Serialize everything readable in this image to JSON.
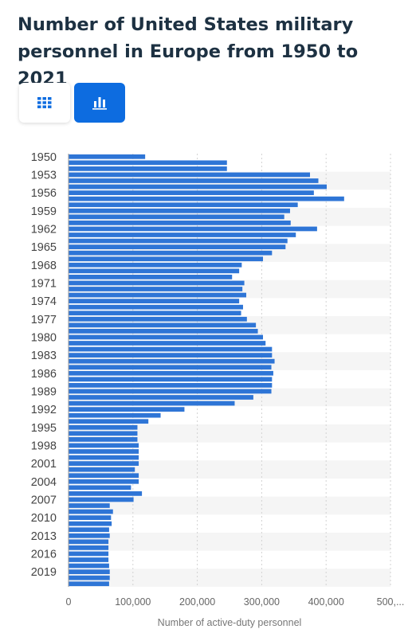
{
  "title": "Number of United States military personnel in Europe from 1950 to 2021",
  "toolbar": {
    "table_icon": "grid-icon",
    "chart_icon": "bar-chart-icon",
    "active_view": "chart",
    "accent_color": "#0d6ce0"
  },
  "chart_data": {
    "type": "bar",
    "orientation": "horizontal",
    "bar_color": "#2e75d6",
    "stripe_color": "#f5f5f5",
    "grid": true,
    "xlabel": "Number of active-duty personnel",
    "xlim": [
      0,
      500000
    ],
    "x_ticks": [
      "0",
      "100,000",
      "200,000",
      "300,000",
      "400,000",
      "500,..."
    ],
    "categories": [
      "1950",
      "1951",
      "1952",
      "1953",
      "1954",
      "1955",
      "1956",
      "1957",
      "1958",
      "1959",
      "1960",
      "1961",
      "1962",
      "1963",
      "1964",
      "1965",
      "1966",
      "1967",
      "1968",
      "1969",
      "1970",
      "1971",
      "1972",
      "1973",
      "1974",
      "1975",
      "1976",
      "1977",
      "1978",
      "1979",
      "1980",
      "1981",
      "1982",
      "1983",
      "1984",
      "1985",
      "1986",
      "1987",
      "1988",
      "1989",
      "1990",
      "1991",
      "1992",
      "1993",
      "1994",
      "1995",
      "1996",
      "1997",
      "1998",
      "1999",
      "2000",
      "2001",
      "2002",
      "2003",
      "2004",
      "2005",
      "2006",
      "2007",
      "2008",
      "2009",
      "2010",
      "2011",
      "2012",
      "2013",
      "2014",
      "2015",
      "2016",
      "2017",
      "2018",
      "2019",
      "2020",
      "2021"
    ],
    "y_tick_labels": [
      "1950",
      "1953",
      "1956",
      "1959",
      "1962",
      "1965",
      "1968",
      "1971",
      "1974",
      "1977",
      "1980",
      "1983",
      "1986",
      "1989",
      "1992",
      "1995",
      "1998",
      "2001",
      "2004",
      "2007",
      "2010",
      "2013",
      "2016",
      "2019"
    ],
    "values": [
      119000,
      246000,
      246000,
      375000,
      388000,
      401000,
      381000,
      428000,
      356000,
      344000,
      335000,
      345000,
      386000,
      353000,
      340000,
      337000,
      316000,
      302000,
      269000,
      265000,
      254000,
      273000,
      270000,
      276000,
      265000,
      271000,
      268000,
      277000,
      291000,
      294000,
      302000,
      306000,
      316000,
      316000,
      320000,
      315000,
      318000,
      316000,
      316000,
      315000,
      287000,
      258000,
      180000,
      143000,
      124000,
      107000,
      107000,
      107000,
      109000,
      109000,
      109000,
      109000,
      103000,
      109000,
      109000,
      97000,
      114000,
      101000,
      64000,
      69000,
      66000,
      67000,
      63000,
      64000,
      62000,
      62000,
      62000,
      62000,
      63000,
      64000,
      64000,
      63000
    ]
  }
}
